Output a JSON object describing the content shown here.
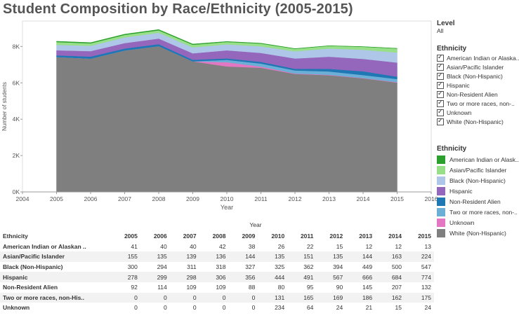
{
  "title": "Student Composition by Race/Ethnicity (2005-2015)",
  "colors": {
    "American Indian or Alaskan Native": "#2ca02c",
    "Asian/Pacific Islander": "#98df8a",
    "Black (Non-Hispanic)": "#aec7e8",
    "Hispanic": "#9467bd",
    "Non-Resident Alien": "#1f77b4",
    "Two or more races, non-Hispanic": "#6baed6",
    "Unknown": "#e377c2",
    "White (Non-Hispanic)": "#7f7f7f"
  },
  "chart_data": {
    "type": "area",
    "stacked": true,
    "title": "Student Composition by Race/Ethnicity (2005-2015)",
    "xlabel": "Year",
    "ylabel": "Number of students",
    "x_ticks": [
      2004,
      2005,
      2006,
      2007,
      2008,
      2009,
      2010,
      2011,
      2012,
      2013,
      2014,
      2015,
      2016
    ],
    "xlim": [
      2004,
      2016
    ],
    "y_ticks": [
      0,
      2000,
      4000,
      6000,
      8000
    ],
    "y_tick_labels": [
      "0K",
      "2K",
      "4K",
      "6K",
      "8K"
    ],
    "ylim": [
      0,
      9400
    ],
    "x": [
      2005,
      2006,
      2007,
      2008,
      2009,
      2010,
      2011,
      2012,
      2013,
      2014,
      2015
    ],
    "series": [
      {
        "name": "White (Non-Hispanic)",
        "values": [
          7420,
          7330,
          7780,
          8020,
          7180,
          6900,
          6830,
          6490,
          6420,
          6250,
          6010
        ]
      },
      {
        "name": "Unknown",
        "values": [
          0,
          0,
          0,
          0,
          0,
          234,
          64,
          24,
          21,
          15,
          24
        ]
      },
      {
        "name": "Two or more races, non-Hispanic",
        "values": [
          0,
          0,
          0,
          0,
          0,
          131,
          165,
          169,
          186,
          162,
          175
        ]
      },
      {
        "name": "Non-Resident Alien",
        "values": [
          92,
          114,
          109,
          109,
          88,
          80,
          95,
          90,
          145,
          207,
          132
        ]
      },
      {
        "name": "Hispanic",
        "values": [
          278,
          299,
          298,
          306,
          356,
          444,
          491,
          567,
          666,
          684,
          774
        ]
      },
      {
        "name": "Black (Non-Hispanic)",
        "values": [
          300,
          294,
          311,
          318,
          327,
          325,
          362,
          394,
          449,
          500,
          547
        ]
      },
      {
        "name": "Asian/Pacific Islander",
        "values": [
          155,
          135,
          139,
          136,
          144,
          135,
          151,
          135,
          144,
          163,
          224
        ]
      },
      {
        "name": "American Indian or Alaskan Native",
        "values": [
          41,
          40,
          40,
          42,
          38,
          26,
          22,
          15,
          12,
          12,
          13
        ]
      }
    ]
  },
  "filters": {
    "level_title": "Level",
    "level_value": "All",
    "ethnicity_title": "Ethnicity",
    "items": [
      "American Indian or Alaska..",
      "Asian/Pacific Islander",
      "Black (Non-Hispanic)",
      "Hispanic",
      "Non-Resident Alien",
      "Two or more races, non-..",
      "Unknown",
      "White (Non-Hispanic)"
    ]
  },
  "legend": {
    "title": "Ethnicity",
    "items": [
      {
        "label": "American Indian or Alask..",
        "color": "#2ca02c"
      },
      {
        "label": "Asian/Pacific Islander",
        "color": "#98df8a"
      },
      {
        "label": "Black (Non-Hispanic)",
        "color": "#aec7e8"
      },
      {
        "label": "Hispanic",
        "color": "#9467bd"
      },
      {
        "label": "Non-Resident Alien",
        "color": "#1f77b4"
      },
      {
        "label": "Two or more races, non-..",
        "color": "#6baed6"
      },
      {
        "label": "Unknown",
        "color": "#e377c2"
      },
      {
        "label": "White (Non-Hispanic)",
        "color": "#7f7f7f"
      }
    ]
  },
  "table": {
    "year_label": "Year",
    "first_header": "Ethnicity",
    "years": [
      "2005",
      "2006",
      "2007",
      "2008",
      "2009",
      "2010",
      "2011",
      "2012",
      "2013",
      "2014",
      "2015"
    ],
    "rows": [
      {
        "name": "American Indian or Alaskan ..",
        "values": [
          "41",
          "40",
          "40",
          "42",
          "38",
          "26",
          "22",
          "15",
          "12",
          "12",
          "13"
        ]
      },
      {
        "name": "Asian/Pacific Islander",
        "values": [
          "155",
          "135",
          "139",
          "136",
          "144",
          "135",
          "151",
          "135",
          "144",
          "163",
          "224"
        ]
      },
      {
        "name": "Black (Non-Hispanic)",
        "values": [
          "300",
          "294",
          "311",
          "318",
          "327",
          "325",
          "362",
          "394",
          "449",
          "500",
          "547"
        ]
      },
      {
        "name": "Hispanic",
        "values": [
          "278",
          "299",
          "298",
          "306",
          "356",
          "444",
          "491",
          "567",
          "666",
          "684",
          "774"
        ]
      },
      {
        "name": "Non-Resident Alien",
        "values": [
          "92",
          "114",
          "109",
          "109",
          "88",
          "80",
          "95",
          "90",
          "145",
          "207",
          "132"
        ]
      },
      {
        "name": "Two or more races, non-His..",
        "values": [
          "0",
          "0",
          "0",
          "0",
          "0",
          "131",
          "165",
          "169",
          "186",
          "162",
          "175"
        ]
      },
      {
        "name": "Unknown",
        "values": [
          "0",
          "0",
          "0",
          "0",
          "0",
          "234",
          "64",
          "24",
          "21",
          "15",
          "24"
        ]
      }
    ]
  }
}
